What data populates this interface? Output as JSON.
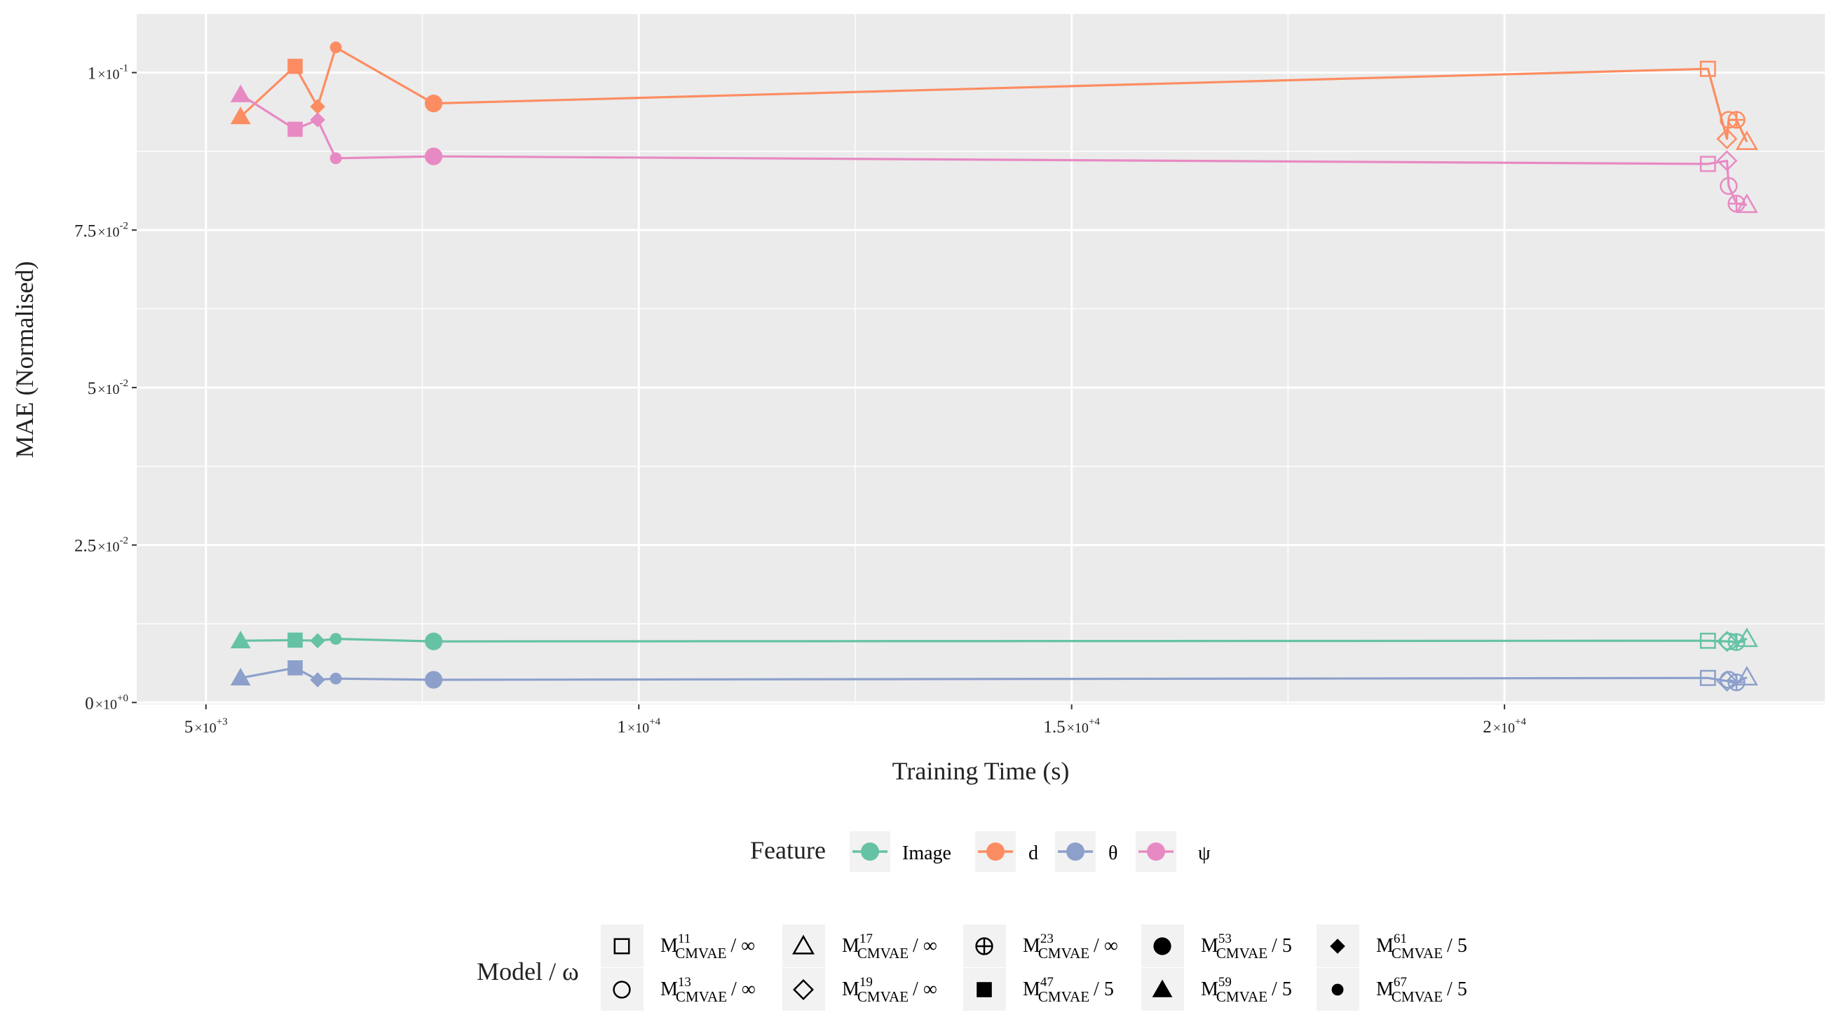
{
  "chart_data": {
    "type": "line",
    "title": "",
    "xlabel": "Training Time (s)",
    "ylabel": "MAE (Normalised)",
    "xlim": [
      4200,
      23700
    ],
    "ylim": [
      -0.0003,
      0.1093
    ],
    "x_ticks": [
      {
        "value": 5000,
        "mantissa": "5",
        "exp": "+3"
      },
      {
        "value": 10000,
        "mantissa": "1",
        "exp": "+4"
      },
      {
        "value": 15000,
        "mantissa": "1.5",
        "exp": "+4"
      },
      {
        "value": 20000,
        "mantissa": "2",
        "exp": "+4"
      }
    ],
    "x_minor_ticks": [
      7500,
      12500,
      17500
    ],
    "y_ticks": [
      {
        "value": 0,
        "mantissa": "0",
        "exp": "+0"
      },
      {
        "value": 0.025,
        "mantissa": "2.5",
        "exp": "-2"
      },
      {
        "value": 0.05,
        "mantissa": "5",
        "exp": "-2"
      },
      {
        "value": 0.075,
        "mantissa": "7.5",
        "exp": "-2"
      },
      {
        "value": 0.1,
        "mantissa": "1",
        "exp": "-1"
      }
    ],
    "y_minor_ticks": [
      0.0125,
      0.0375,
      0.0625,
      0.0875
    ],
    "features": [
      {
        "key": "image",
        "label": "Image",
        "color": "#66C2A5"
      },
      {
        "key": "d",
        "label": "d",
        "color": "#FC8D62"
      },
      {
        "key": "theta",
        "label": "θ",
        "color": "#8DA0CB"
      },
      {
        "key": "psi",
        "label": "ψ",
        "color": "#E78AC3"
      }
    ],
    "models": [
      {
        "id": "M11",
        "sup": "11",
        "sub": "CMVAE",
        "omega": "∞",
        "shape": "square-open"
      },
      {
        "id": "M13",
        "sup": "13",
        "sub": "CMVAE",
        "omega": "∞",
        "shape": "circle-open"
      },
      {
        "id": "M17",
        "sup": "17",
        "sub": "CMVAE",
        "omega": "∞",
        "shape": "triangle-open"
      },
      {
        "id": "M19",
        "sup": "19",
        "sub": "CMVAE",
        "omega": "∞",
        "shape": "diamond-open"
      },
      {
        "id": "M23",
        "sup": "23",
        "sub": "CMVAE",
        "omega": "∞",
        "shape": "circle-plus"
      },
      {
        "id": "M47",
        "sup": "47",
        "sub": "CMVAE",
        "omega": "5",
        "shape": "square-filled"
      },
      {
        "id": "M53",
        "sup": "53",
        "sub": "CMVAE",
        "omega": "5",
        "shape": "circle-filled"
      },
      {
        "id": "M59",
        "sup": "59",
        "sub": "CMVAE",
        "omega": "5",
        "shape": "triangle-filled"
      },
      {
        "id": "M61",
        "sup": "61",
        "sub": "CMVAE",
        "omega": "5",
        "shape": "diamond-filled"
      },
      {
        "id": "M67",
        "sup": "67",
        "sub": "CMVAE",
        "omega": "5",
        "shape": "circle-small"
      }
    ],
    "series": [
      {
        "feature": "image",
        "points": [
          {
            "model": "M59",
            "x": 5400,
            "y": 0.0098
          },
          {
            "model": "M47",
            "x": 6030,
            "y": 0.0099
          },
          {
            "model": "M61",
            "x": 6290,
            "y": 0.0098
          },
          {
            "model": "M67",
            "x": 6500,
            "y": 0.0101
          },
          {
            "model": "M53",
            "x": 7630,
            "y": 0.0097
          },
          {
            "model": "M11",
            "x": 22350,
            "y": 0.0098
          },
          {
            "model": "M19",
            "x": 22570,
            "y": 0.0097
          },
          {
            "model": "M13",
            "x": 22590,
            "y": 0.0097
          },
          {
            "model": "M23",
            "x": 22680,
            "y": 0.0096
          },
          {
            "model": "M17",
            "x": 22800,
            "y": 0.0101
          }
        ]
      },
      {
        "feature": "d",
        "points": [
          {
            "model": "M59",
            "x": 5400,
            "y": 0.093
          },
          {
            "model": "M47",
            "x": 6030,
            "y": 0.101
          },
          {
            "model": "M61",
            "x": 6290,
            "y": 0.0946
          },
          {
            "model": "M67",
            "x": 6500,
            "y": 0.104
          },
          {
            "model": "M53",
            "x": 7630,
            "y": 0.0951
          },
          {
            "model": "M11",
            "x": 22350,
            "y": 0.1006
          },
          {
            "model": "M19",
            "x": 22570,
            "y": 0.0895
          },
          {
            "model": "M13",
            "x": 22590,
            "y": 0.0925
          },
          {
            "model": "M23",
            "x": 22680,
            "y": 0.0925
          },
          {
            "model": "M17",
            "x": 22800,
            "y": 0.089
          }
        ]
      },
      {
        "feature": "theta",
        "points": [
          {
            "model": "M59",
            "x": 5400,
            "y": 0.0039
          },
          {
            "model": "M47",
            "x": 6030,
            "y": 0.0055
          },
          {
            "model": "M61",
            "x": 6290,
            "y": 0.0036
          },
          {
            "model": "M67",
            "x": 6500,
            "y": 0.0038
          },
          {
            "model": "M53",
            "x": 7630,
            "y": 0.0036
          },
          {
            "model": "M11",
            "x": 22350,
            "y": 0.0039
          },
          {
            "model": "M19",
            "x": 22570,
            "y": 0.0034
          },
          {
            "model": "M13",
            "x": 22590,
            "y": 0.0036
          },
          {
            "model": "M23",
            "x": 22680,
            "y": 0.0032
          },
          {
            "model": "M17",
            "x": 22800,
            "y": 0.004
          }
        ]
      },
      {
        "feature": "psi",
        "points": [
          {
            "model": "M59",
            "x": 5400,
            "y": 0.0965
          },
          {
            "model": "M47",
            "x": 6030,
            "y": 0.091
          },
          {
            "model": "M61",
            "x": 6290,
            "y": 0.0925
          },
          {
            "model": "M67",
            "x": 6500,
            "y": 0.0864
          },
          {
            "model": "M53",
            "x": 7630,
            "y": 0.0867
          },
          {
            "model": "M11",
            "x": 22350,
            "y": 0.0855
          },
          {
            "model": "M19",
            "x": 22570,
            "y": 0.086
          },
          {
            "model": "M13",
            "x": 22590,
            "y": 0.082
          },
          {
            "model": "M23",
            "x": 22680,
            "y": 0.0792
          },
          {
            "model": "M17",
            "x": 22800,
            "y": 0.079
          }
        ]
      }
    ],
    "legend_feature_title": "Feature",
    "legend_model_title": "Model / ω",
    "legend_position": "bottom"
  }
}
